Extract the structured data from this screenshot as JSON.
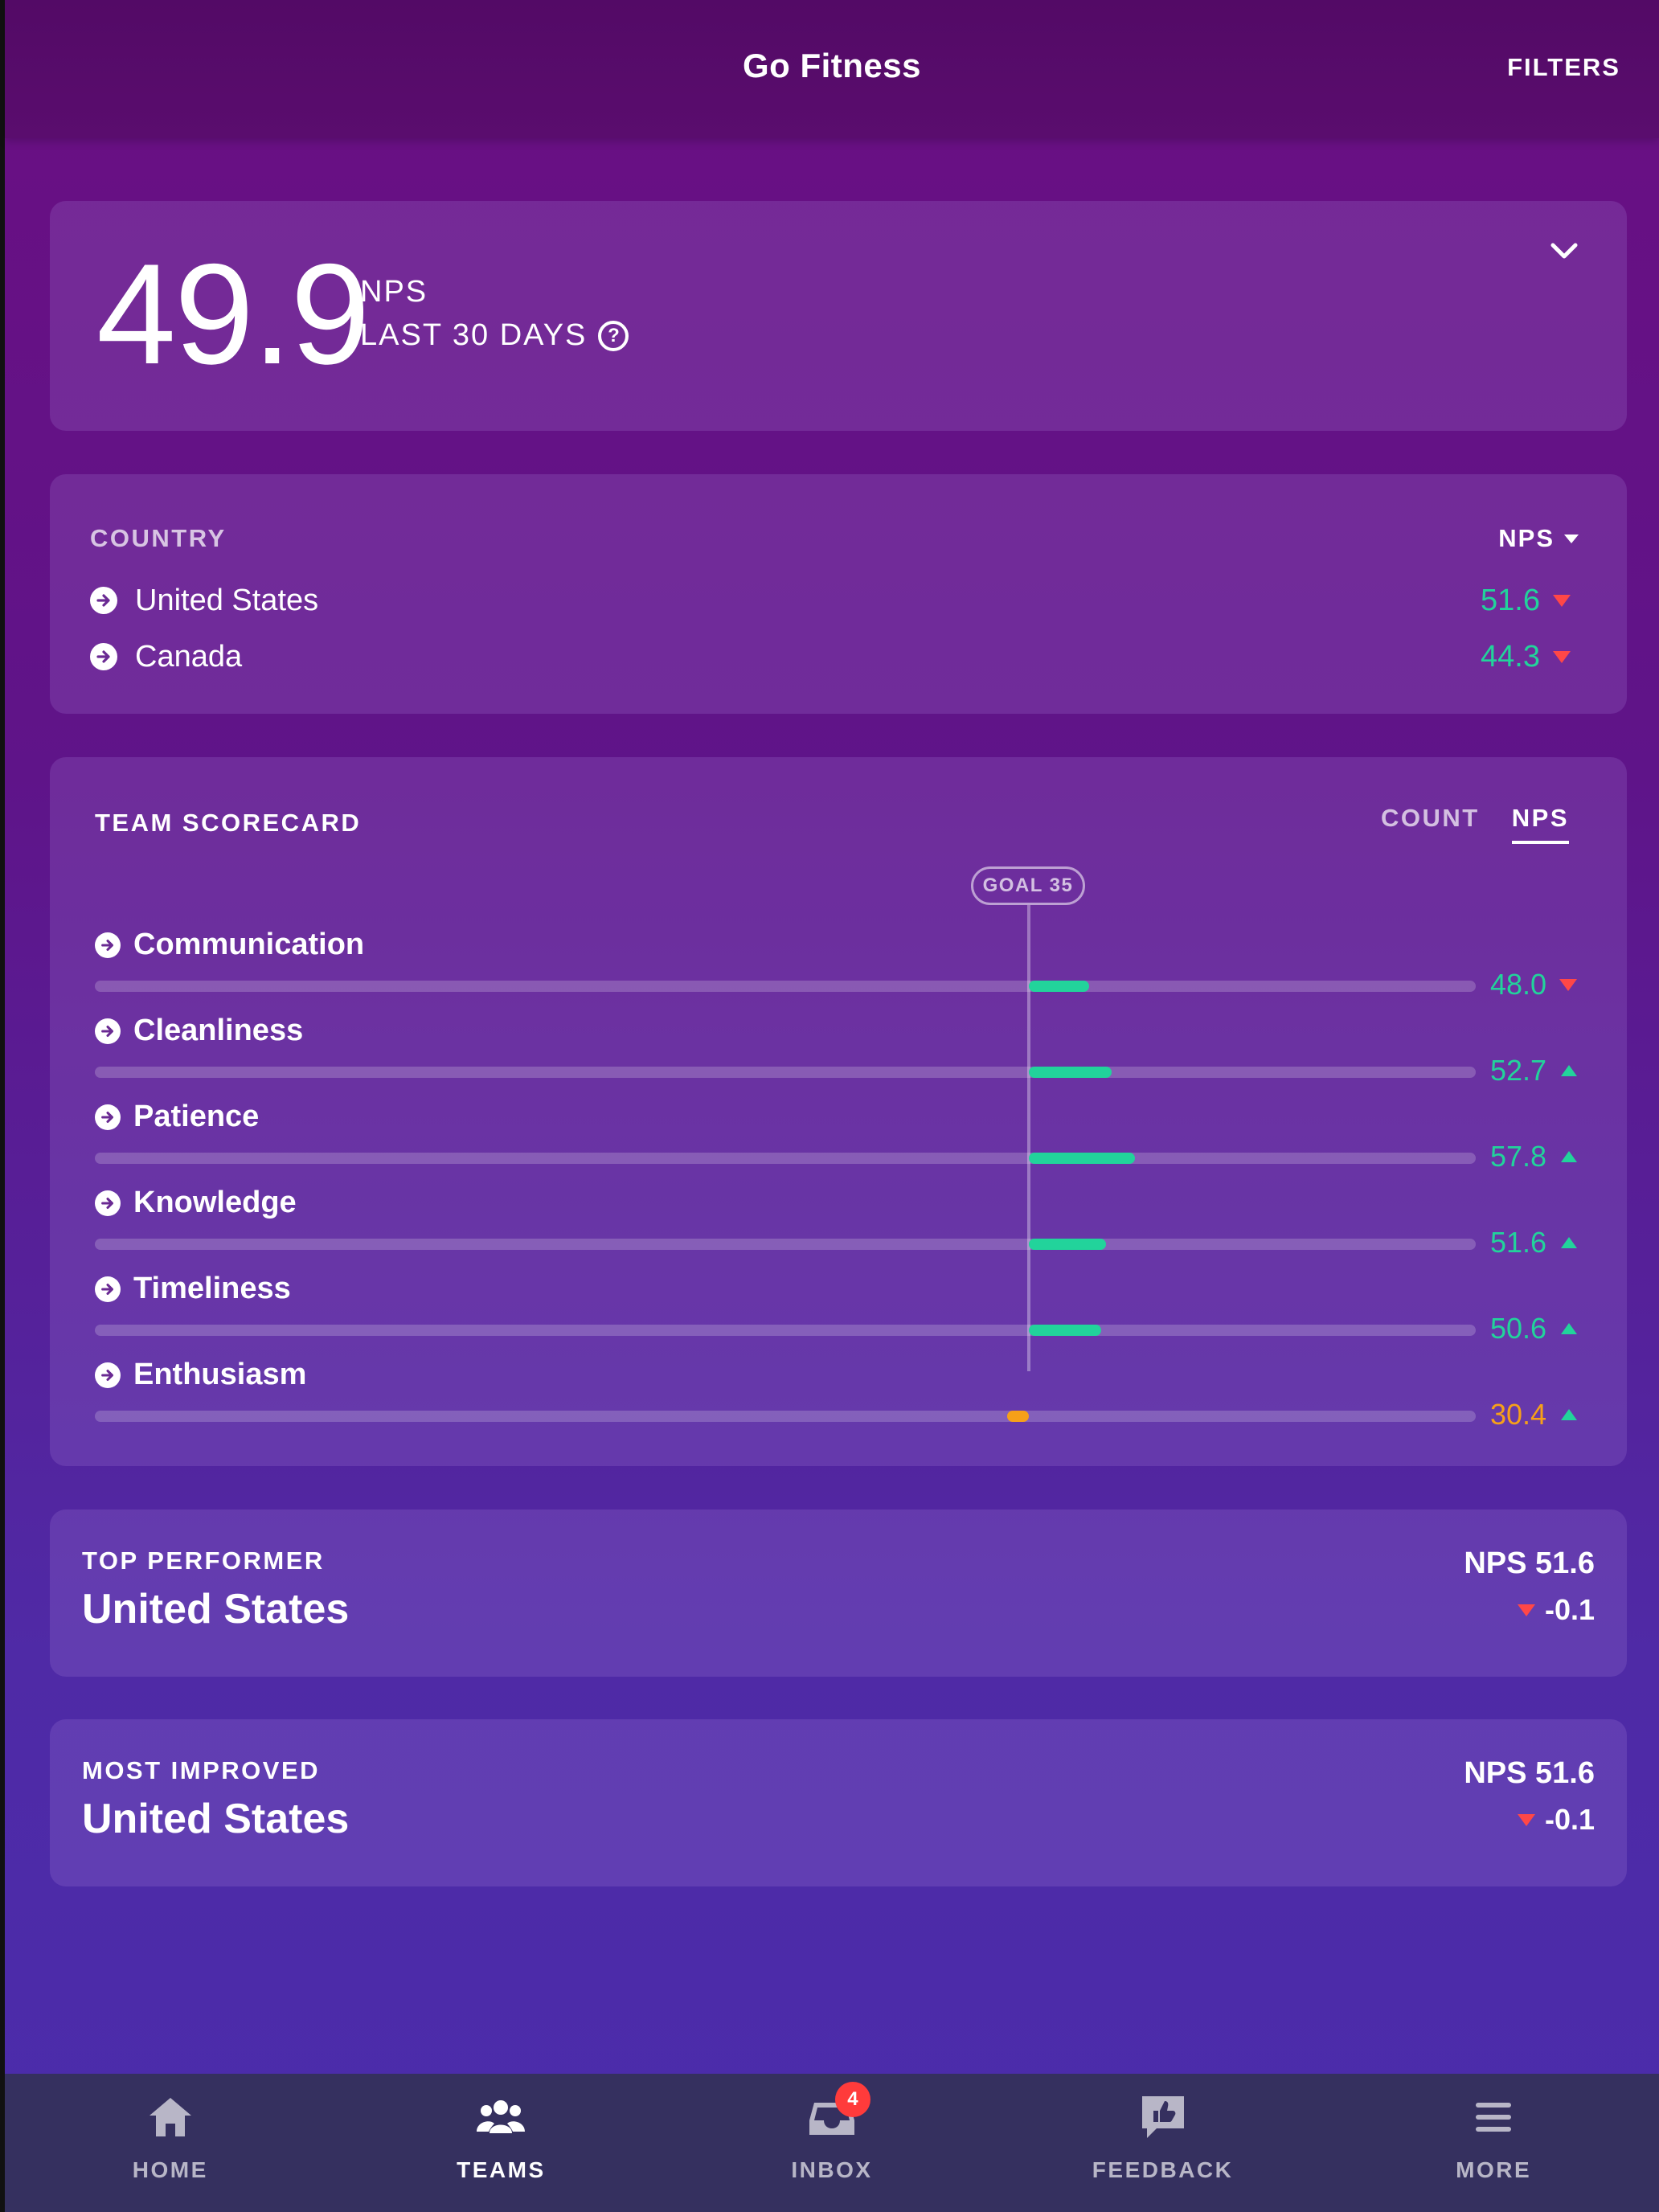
{
  "header": {
    "title": "Go Fitness",
    "filters_label": "FILTERS"
  },
  "summary": {
    "score": "49.9",
    "metric": "NPS",
    "period": "LAST 30 DAYS"
  },
  "country": {
    "heading": "COUNTRY",
    "sort_label": "NPS",
    "rows": [
      {
        "name": "United States",
        "value": "51.6",
        "trend": "down"
      },
      {
        "name": "Canada",
        "value": "44.3",
        "trend": "down"
      }
    ]
  },
  "scorecard": {
    "title": "TEAM SCORECARD",
    "tabs": [
      {
        "label": "COUNT",
        "active": false
      },
      {
        "label": "NPS",
        "active": true
      }
    ],
    "goal_label": "GOAL 35",
    "goal": 35,
    "metrics": [
      {
        "name": "Communication",
        "value": "48.0",
        "nps": 48.0,
        "trend": "down",
        "color": "#22d39b"
      },
      {
        "name": "Cleanliness",
        "value": "52.7",
        "nps": 52.7,
        "trend": "up",
        "color": "#22d39b"
      },
      {
        "name": "Patience",
        "value": "57.8",
        "nps": 57.8,
        "trend": "up",
        "color": "#22d39b"
      },
      {
        "name": "Knowledge",
        "value": "51.6",
        "nps": 51.6,
        "trend": "up",
        "color": "#22d39b"
      },
      {
        "name": "Timeliness",
        "value": "50.6",
        "nps": 50.6,
        "trend": "up",
        "color": "#22d39b"
      },
      {
        "name": "Enthusiasm",
        "value": "30.4",
        "nps": 30.4,
        "trend": "up",
        "color": "#f6a019"
      }
    ]
  },
  "top_performer": {
    "label": "TOP PERFORMER",
    "name": "United States",
    "nps": "NPS 51.6",
    "delta": "-0.1"
  },
  "most_improved": {
    "label": "MOST IMPROVED",
    "name": "United States",
    "nps": "NPS 51.6",
    "delta": "-0.1"
  },
  "nav": {
    "items": [
      {
        "label": "HOME",
        "icon": "home-icon",
        "active": false
      },
      {
        "label": "TEAMS",
        "icon": "teams-icon",
        "active": true
      },
      {
        "label": "INBOX",
        "icon": "inbox-icon",
        "active": false,
        "badge": "4"
      },
      {
        "label": "FEEDBACK",
        "icon": "feedback-icon",
        "active": false
      },
      {
        "label": "MORE",
        "icon": "menu-icon",
        "active": false
      }
    ]
  },
  "colors": {
    "positive": "#22d39b",
    "negative": "#ff4747",
    "warning": "#f6a019",
    "nav_bg": "#35305f"
  }
}
